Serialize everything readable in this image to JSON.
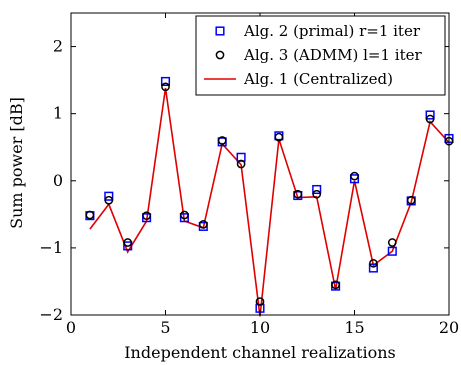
{
  "chart_data": {
    "type": "line",
    "title": "",
    "xlabel": "Independent channel realizations",
    "ylabel": "Sum power [dB]",
    "xlim": [
      0,
      20
    ],
    "ylim": [
      -2,
      2.5
    ],
    "xticks": [
      0,
      5,
      10,
      15,
      20
    ],
    "yticks": [
      -2,
      -1,
      0,
      1,
      2
    ],
    "xtick_labels": [
      "0",
      "5",
      "10",
      "15",
      "20"
    ],
    "ytick_labels": [
      "−2",
      "−1",
      "0",
      "1",
      "2"
    ],
    "grid": false,
    "legend_position": "top-right",
    "x": [
      1,
      2,
      3,
      4,
      5,
      6,
      7,
      8,
      9,
      10,
      11,
      12,
      13,
      14,
      15,
      16,
      17,
      18,
      19,
      20
    ],
    "series": [
      {
        "name": "Alg. 2 (primal) r=1 iter",
        "style": "square-markers",
        "color": "#0000ff",
        "values": [
          -0.52,
          -0.23,
          -0.97,
          -0.55,
          1.48,
          -0.55,
          -0.68,
          0.58,
          0.35,
          -1.9,
          0.67,
          -0.22,
          -0.13,
          -1.57,
          0.03,
          -1.3,
          -1.05,
          -0.3,
          0.98,
          0.63
        ]
      },
      {
        "name": "Alg. 3 (ADMM) l=1 iter",
        "style": "circle-markers",
        "color": "#000000",
        "values": [
          -0.51,
          -0.29,
          -0.92,
          -0.52,
          1.4,
          -0.51,
          -0.65,
          0.6,
          0.25,
          -1.8,
          0.65,
          -0.2,
          -0.2,
          -1.55,
          0.07,
          -1.23,
          -0.92,
          -0.29,
          0.92,
          0.59
        ]
      },
      {
        "name": "Alg. 1 (Centralized)",
        "style": "line",
        "color": "#e00000",
        "values": [
          -0.72,
          -0.35,
          -1.06,
          -0.6,
          1.38,
          -0.6,
          -0.7,
          0.55,
          0.24,
          -2.02,
          0.62,
          -0.25,
          -0.24,
          -1.62,
          0.0,
          -1.26,
          -1.05,
          -0.32,
          0.88,
          0.57
        ]
      }
    ]
  }
}
